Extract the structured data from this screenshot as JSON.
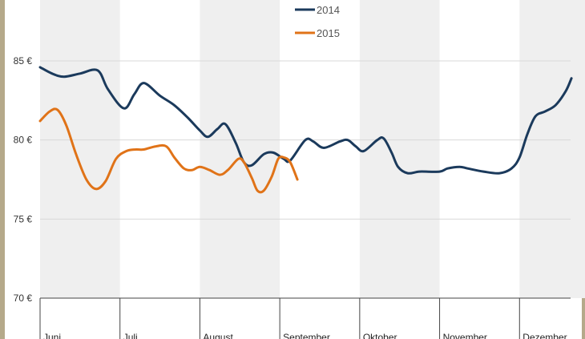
{
  "chart_data": {
    "type": "line",
    "y_ticks": [
      "70 €",
      "75 €",
      "80 €",
      "85 €"
    ],
    "ylim": [
      70,
      90
    ],
    "months": [
      "Juni",
      "Juli",
      "August",
      "September",
      "Oktober",
      "November",
      "Dezember"
    ],
    "x_domain": [
      0,
      7
    ],
    "grid": true,
    "legend_position": "top-center",
    "series": [
      {
        "name": "2014",
        "color": "#1b3a5c",
        "points": [
          [
            0.0,
            84.6
          ],
          [
            0.15,
            84.2
          ],
          [
            0.3,
            84.0
          ],
          [
            0.5,
            84.2
          ],
          [
            0.72,
            84.4
          ],
          [
            0.85,
            83.2
          ],
          [
            1.05,
            82.0
          ],
          [
            1.18,
            82.9
          ],
          [
            1.3,
            83.6
          ],
          [
            1.5,
            82.8
          ],
          [
            1.68,
            82.2
          ],
          [
            1.85,
            81.4
          ],
          [
            2.0,
            80.6
          ],
          [
            2.1,
            80.2
          ],
          [
            2.22,
            80.7
          ],
          [
            2.32,
            81.0
          ],
          [
            2.45,
            79.8
          ],
          [
            2.55,
            78.6
          ],
          [
            2.65,
            78.4
          ],
          [
            2.8,
            79.1
          ],
          [
            2.92,
            79.2
          ],
          [
            3.05,
            78.8
          ],
          [
            3.13,
            78.7
          ],
          [
            3.32,
            80.0
          ],
          [
            3.42,
            79.9
          ],
          [
            3.55,
            79.5
          ],
          [
            3.75,
            79.9
          ],
          [
            3.85,
            80.0
          ],
          [
            3.95,
            79.6
          ],
          [
            4.05,
            79.3
          ],
          [
            4.22,
            80.0
          ],
          [
            4.3,
            80.1
          ],
          [
            4.4,
            79.2
          ],
          [
            4.48,
            78.3
          ],
          [
            4.6,
            77.9
          ],
          [
            4.75,
            78.0
          ],
          [
            5.0,
            78.0
          ],
          [
            5.1,
            78.2
          ],
          [
            5.25,
            78.3
          ],
          [
            5.35,
            78.2
          ],
          [
            5.55,
            78.0
          ],
          [
            5.75,
            77.9
          ],
          [
            5.9,
            78.2
          ],
          [
            6.0,
            78.9
          ],
          [
            6.1,
            80.4
          ],
          [
            6.2,
            81.5
          ],
          [
            6.32,
            81.8
          ],
          [
            6.45,
            82.2
          ],
          [
            6.58,
            83.1
          ],
          [
            6.65,
            83.9
          ]
        ]
      },
      {
        "name": "2015",
        "color": "#e07318",
        "points": [
          [
            0.0,
            81.2
          ],
          [
            0.12,
            81.8
          ],
          [
            0.22,
            81.9
          ],
          [
            0.33,
            80.9
          ],
          [
            0.45,
            79.1
          ],
          [
            0.58,
            77.5
          ],
          [
            0.7,
            76.9
          ],
          [
            0.82,
            77.4
          ],
          [
            0.95,
            78.8
          ],
          [
            1.08,
            79.3
          ],
          [
            1.2,
            79.4
          ],
          [
            1.3,
            79.4
          ],
          [
            1.45,
            79.6
          ],
          [
            1.58,
            79.6
          ],
          [
            1.68,
            78.9
          ],
          [
            1.8,
            78.2
          ],
          [
            1.9,
            78.1
          ],
          [
            2.0,
            78.3
          ],
          [
            2.12,
            78.1
          ],
          [
            2.25,
            77.8
          ],
          [
            2.35,
            78.1
          ],
          [
            2.48,
            78.8
          ],
          [
            2.55,
            78.6
          ],
          [
            2.65,
            77.6
          ],
          [
            2.72,
            76.8
          ],
          [
            2.8,
            76.8
          ],
          [
            2.9,
            77.7
          ],
          [
            2.98,
            78.8
          ],
          [
            3.05,
            78.9
          ],
          [
            3.13,
            78.6
          ],
          [
            3.22,
            77.5
          ]
        ]
      }
    ]
  }
}
